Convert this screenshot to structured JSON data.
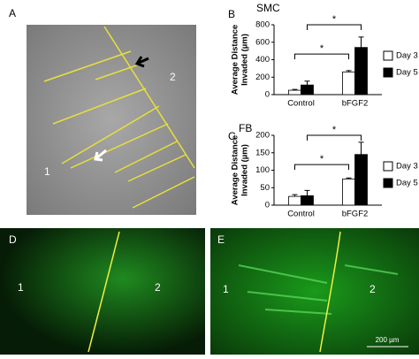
{
  "panels": [
    {
      "letter": "A",
      "labels": [
        "1",
        "2"
      ]
    },
    {
      "letter": "B"
    },
    {
      "letter": "C"
    },
    {
      "letter": "D",
      "labels": [
        "1",
        "2"
      ]
    },
    {
      "letter": "E",
      "labels": [
        "1",
        "2"
      ],
      "scale_bar": "200 µm"
    }
  ],
  "chart_data": [
    {
      "type": "bar",
      "title": "SMC",
      "ylabel": [
        "Average Distance",
        "Invaded (µm)"
      ],
      "categories": [
        "Control",
        "bFGF2"
      ],
      "series": [
        {
          "name": "Day 3",
          "color": "#ffffff",
          "values": [
            50,
            260
          ],
          "errors": [
            10,
            15
          ]
        },
        {
          "name": "Day 5",
          "color": "#000000",
          "values": [
            110,
            540
          ],
          "errors": [
            45,
            120
          ]
        }
      ],
      "ylim": [
        0,
        800
      ],
      "yticks": [
        0,
        200,
        400,
        600,
        800
      ],
      "annotations": [
        "*",
        "*"
      ]
    },
    {
      "type": "bar",
      "title": "FB",
      "ylabel": [
        "Average Distance",
        "Invaded (µm)"
      ],
      "categories": [
        "Control",
        "bFGF2"
      ],
      "series": [
        {
          "name": "Day 3",
          "color": "#ffffff",
          "values": [
            25,
            75
          ],
          "errors": [
            5,
            3
          ]
        },
        {
          "name": "Day 5",
          "color": "#000000",
          "values": [
            27,
            145
          ],
          "errors": [
            15,
            35
          ]
        }
      ],
      "ylim": [
        0,
        200
      ],
      "yticks": [
        0,
        50,
        100,
        150,
        200
      ],
      "annotations": [
        "*",
        "*"
      ]
    }
  ]
}
